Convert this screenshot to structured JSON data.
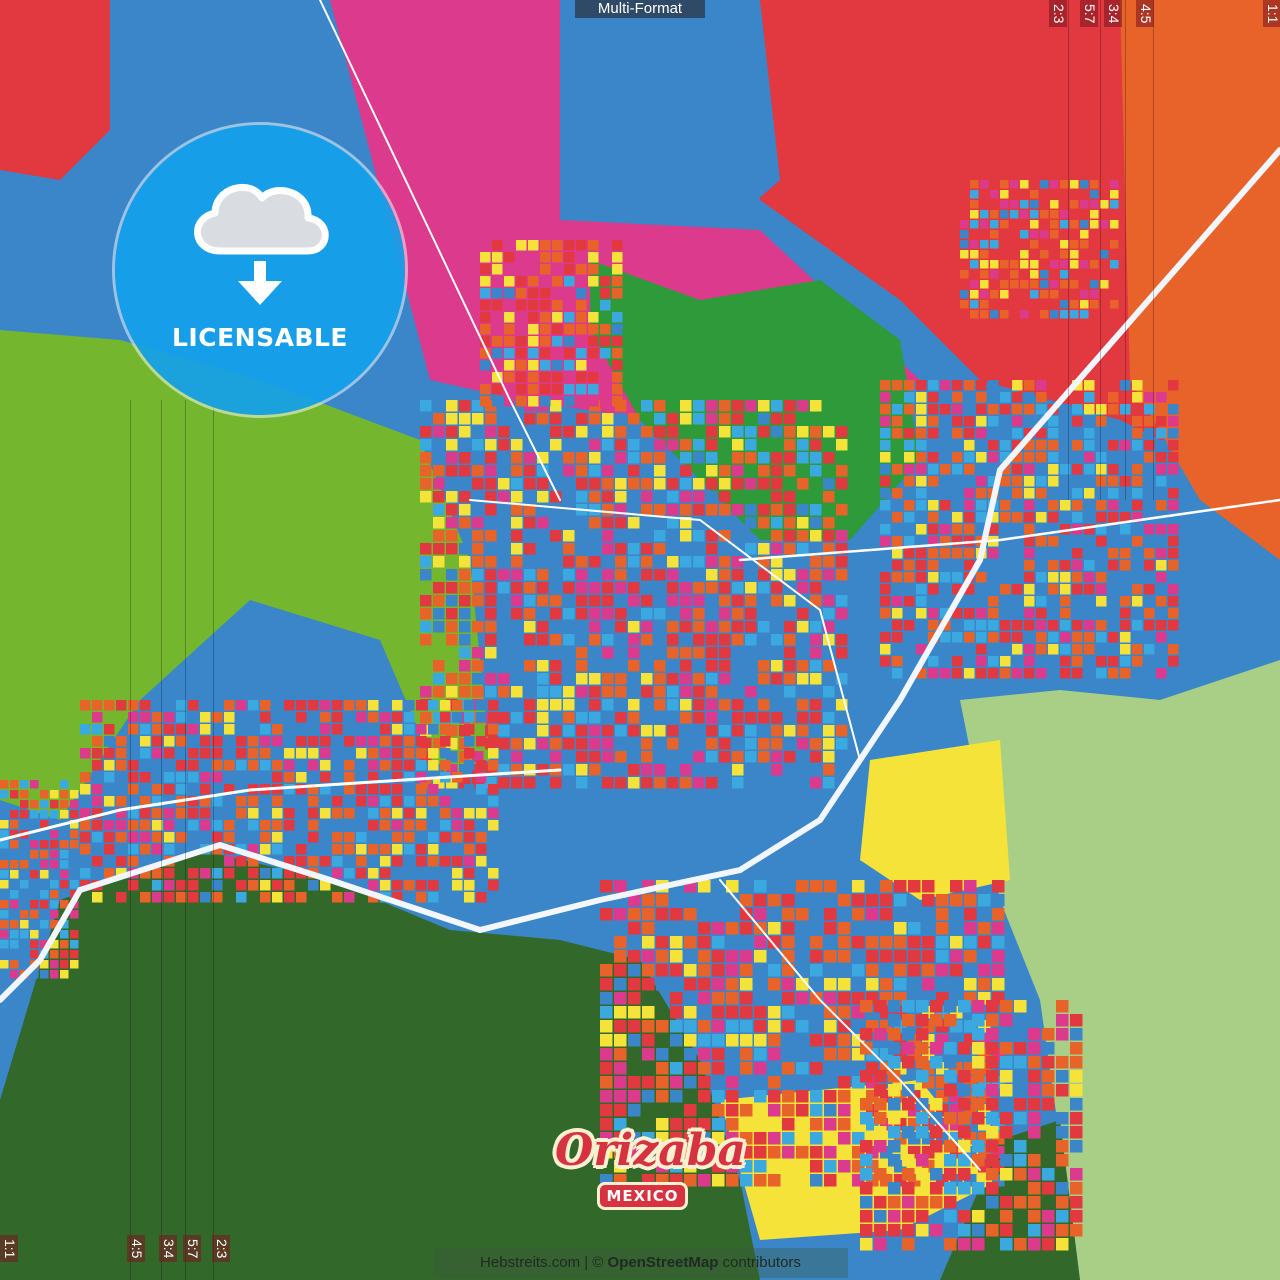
{
  "header": {
    "format_label": "Multi-Format"
  },
  "crop_marks": {
    "top": [
      "2:3",
      "5:7",
      "3:4",
      "4:5",
      "1:1"
    ],
    "bottom": [
      "1:1",
      "4:5",
      "3:4",
      "5:7",
      "2:3"
    ]
  },
  "badge": {
    "label": "LICENSABLE",
    "icon": "cloud-download-icon"
  },
  "title": {
    "city": "Orizaba",
    "country": "MEXICO"
  },
  "attribution": {
    "site": "Hebstreits.com",
    "separator": " | © ",
    "osm": "OpenStreetMap",
    "suffix": " contributors"
  },
  "colors": {
    "blue": "#3a86c8",
    "red": "#e2383f",
    "magenta": "#dc3a8c",
    "orange": "#e8632a",
    "yellow": "#f6e33a",
    "lightgreen": "#74b72e",
    "darkgreen": "#2f6b2a",
    "palegreen": "#a9cf86",
    "cyan": "#3ba8e0"
  }
}
